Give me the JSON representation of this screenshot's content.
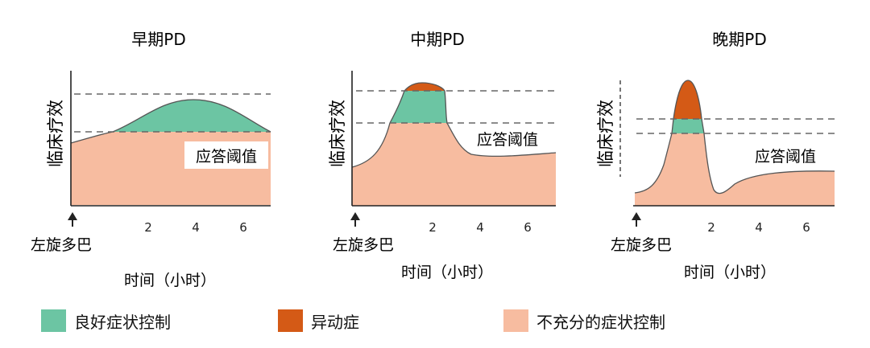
{
  "panels": [
    {
      "id": "early",
      "title": "早期PD",
      "ylabel": "临床疗效",
      "threshold_label": "应答阈值",
      "x_ticks": [
        "2",
        "4",
        "6"
      ],
      "levodopa_label": "左旋多巴",
      "xlabel": "时间（小时）"
    },
    {
      "id": "mid",
      "title": "中期PD",
      "ylabel": "临床疗效",
      "threshold_label": "应答阈值",
      "x_ticks": [
        "2",
        "4",
        "6"
      ],
      "levodopa_label": "左旋多巴",
      "xlabel": "时间（小时）"
    },
    {
      "id": "late",
      "title": "晚期PD",
      "ylabel": "临床疗效",
      "threshold_label": "应答阈值",
      "x_ticks": [
        "2",
        "4",
        "6"
      ],
      "levodopa_label": "左旋多巴",
      "xlabel": "时间（小时）"
    }
  ],
  "legend": [
    {
      "label": "良好症状控制",
      "color": "#6cc5a3"
    },
    {
      "label": "异动症",
      "color": "#d45a16"
    },
    {
      "label": "不充分的症状控制",
      "color": "#f7bca0"
    }
  ],
  "colors": {
    "axis": "#222222",
    "dashed": "#666666",
    "arrow": "#222222"
  }
}
